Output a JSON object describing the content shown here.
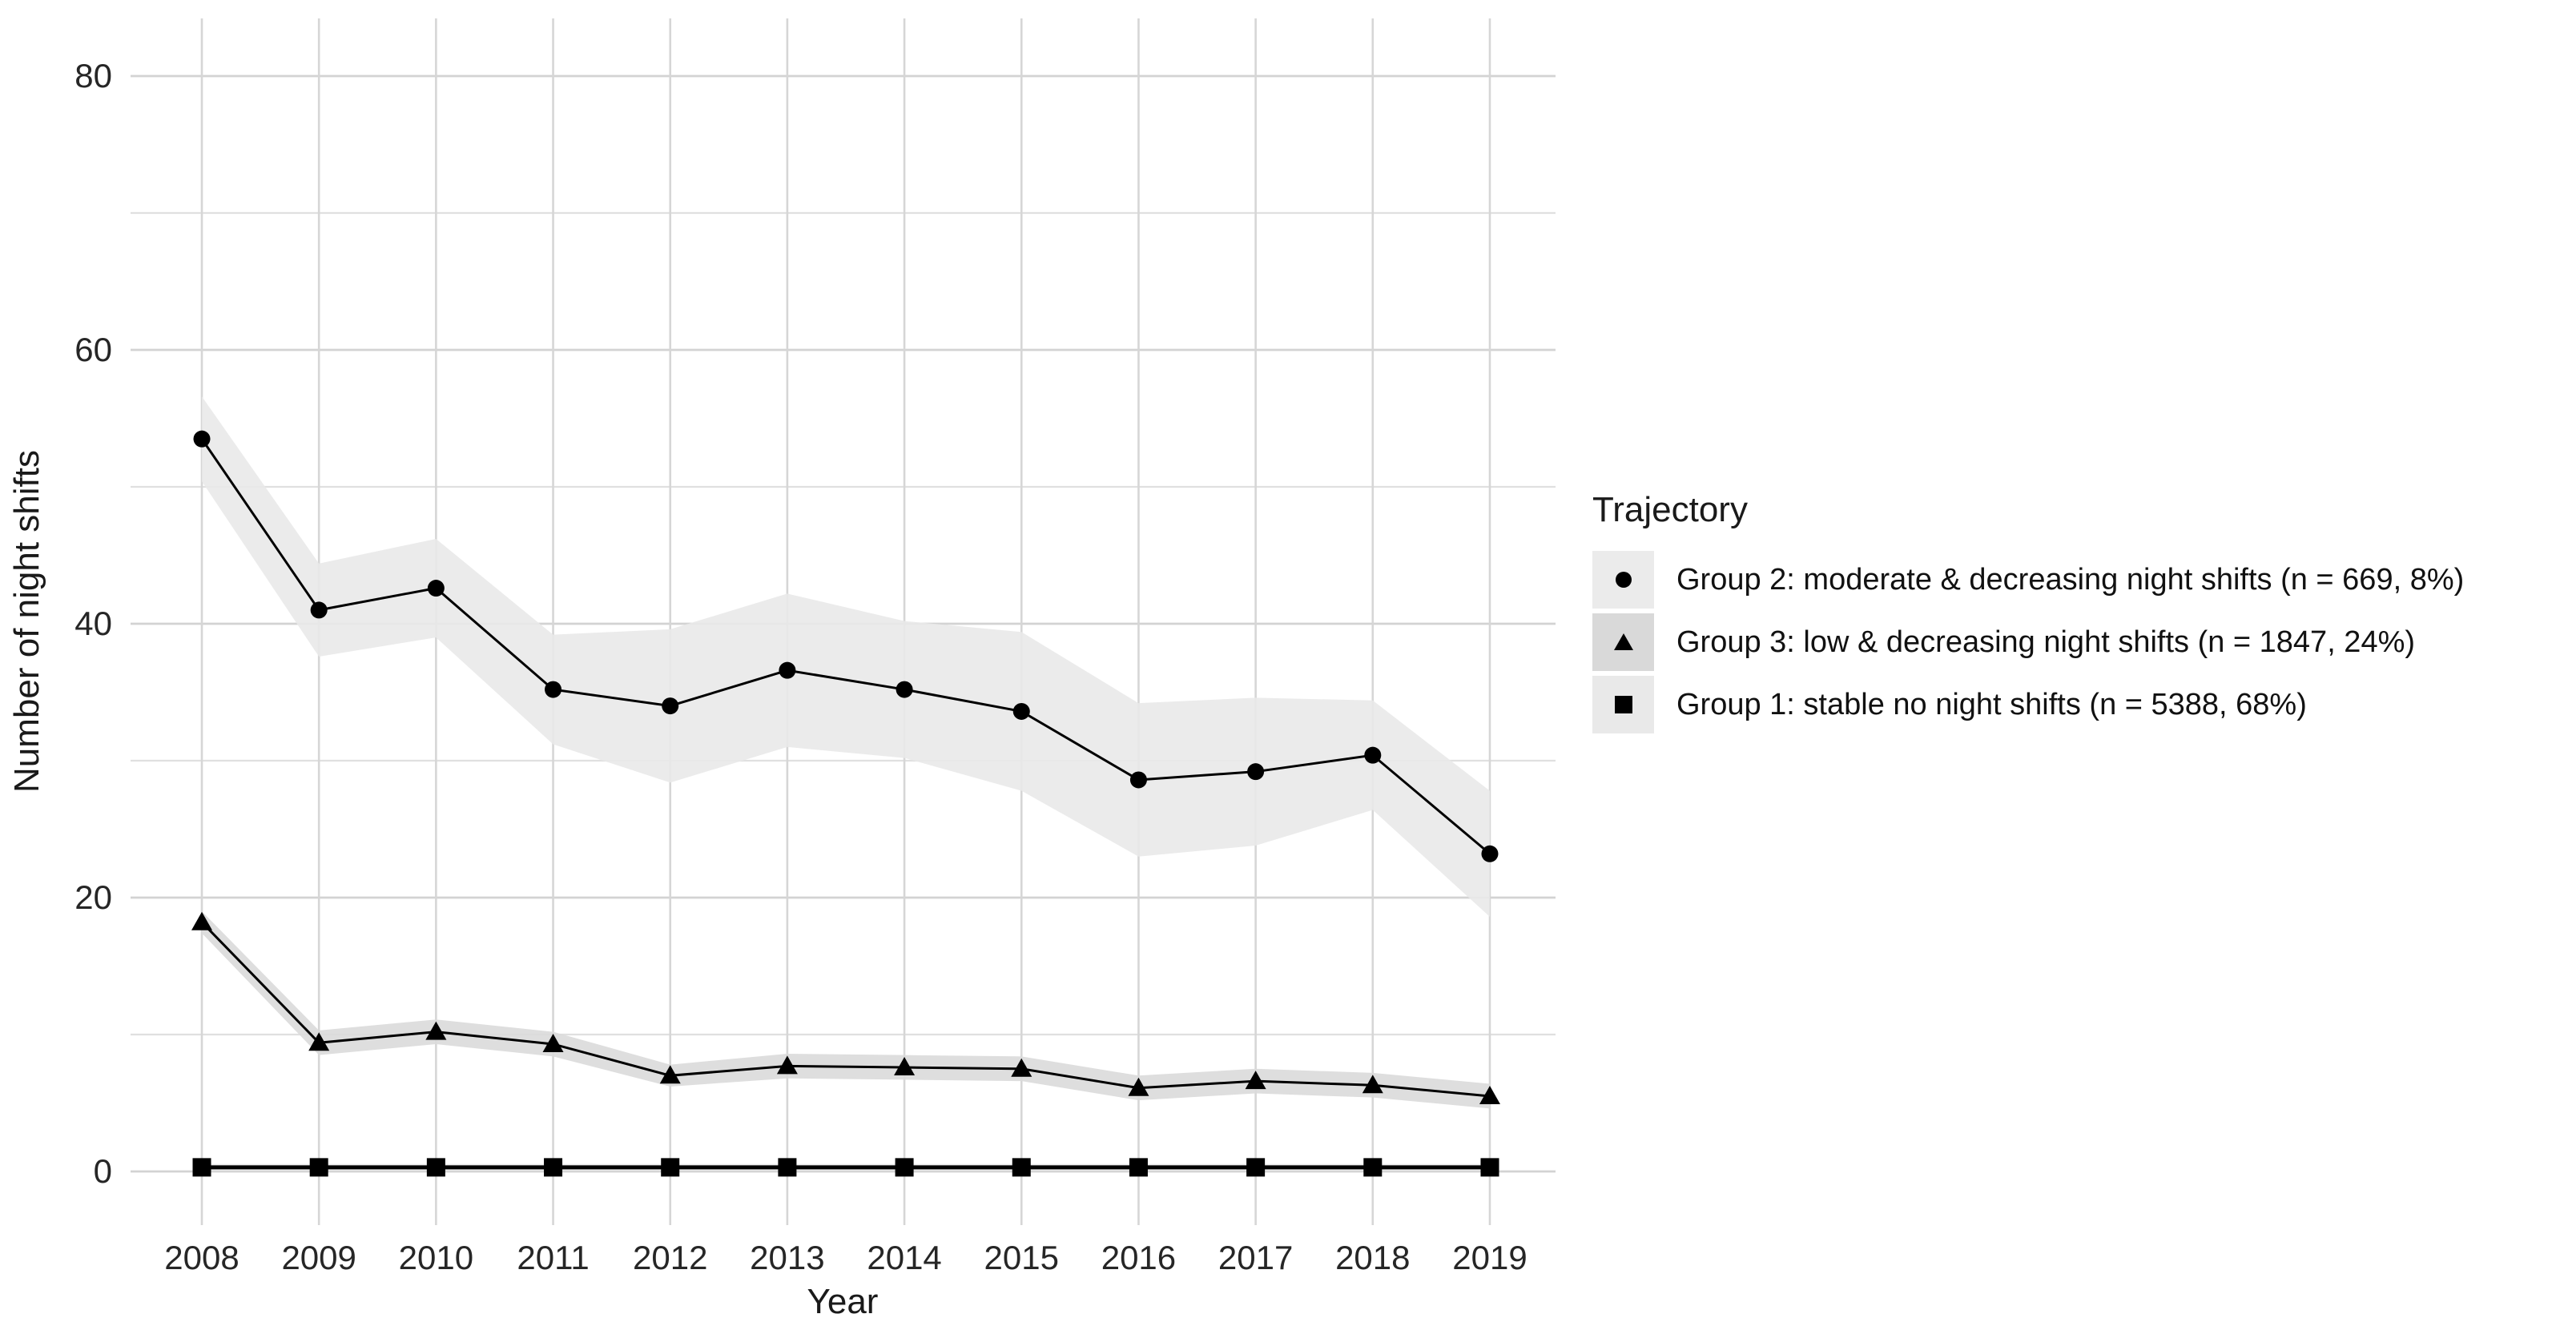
{
  "chart_data": {
    "type": "line",
    "title": "",
    "xlabel": "Year",
    "ylabel": "Number of night shifts",
    "x": [
      2008,
      2009,
      2010,
      2011,
      2012,
      2013,
      2014,
      2015,
      2016,
      2017,
      2018,
      2019
    ],
    "y_ticks": [
      0,
      20,
      40,
      60,
      80
    ],
    "y_minor_ticks": [
      10,
      30,
      50,
      70
    ],
    "ylim": [
      -4,
      84
    ],
    "grid": "horizontal major+minor and vertical per-year light gray gridlines, no panel border",
    "grid_major_color": "#d3d3d3",
    "grid_minor_color": "#e0e0e0",
    "line_color": "#000000",
    "legend_position": "right",
    "legend_title": "Trajectory",
    "series": [
      {
        "name": "Group 2: moderate & decreasing night shifts (n = 669, 8%)",
        "marker": "circle",
        "line_width": 3,
        "ribbon_color": "#e9e9e9",
        "values": [
          53.5,
          41.0,
          42.6,
          35.2,
          34.0,
          36.6,
          35.2,
          33.6,
          28.6,
          29.2,
          30.4,
          23.2
        ],
        "ci_low": [
          50.4,
          37.6,
          39.0,
          31.2,
          28.4,
          31.0,
          30.2,
          27.8,
          23.0,
          23.8,
          26.4,
          18.6
        ],
        "ci_high": [
          56.6,
          44.4,
          46.2,
          39.2,
          39.6,
          42.2,
          40.2,
          39.4,
          34.2,
          34.6,
          34.4,
          27.8
        ]
      },
      {
        "name": "Group 3: low & decreasing night shifts (n = 1847, 24%)",
        "marker": "triangle",
        "line_width": 3,
        "ribbon_color": "#dadada",
        "values": [
          18.2,
          9.4,
          10.2,
          9.3,
          7.0,
          7.7,
          7.6,
          7.5,
          6.1,
          6.6,
          6.3,
          5.5
        ],
        "ci_low": [
          17.4,
          8.5,
          9.3,
          8.4,
          6.2,
          6.8,
          6.7,
          6.6,
          5.2,
          5.7,
          5.4,
          4.6
        ],
        "ci_high": [
          19.0,
          10.3,
          11.1,
          10.2,
          7.8,
          8.6,
          8.5,
          8.4,
          7.0,
          7.5,
          7.2,
          6.4
        ]
      },
      {
        "name": "Group 1: stable no night shifts (n = 5388, 68%)",
        "marker": "square",
        "line_width": 5,
        "ribbon_color": "#e9e9e9",
        "values": [
          0.3,
          0.3,
          0.3,
          0.3,
          0.3,
          0.3,
          0.3,
          0.3,
          0.3,
          0.3,
          0.3,
          0.3
        ],
        "ci_low": [
          0.05,
          0.05,
          0.05,
          0.05,
          0.05,
          0.05,
          0.05,
          0.05,
          0.05,
          0.05,
          0.05,
          0.05
        ],
        "ci_high": [
          0.55,
          0.55,
          0.55,
          0.55,
          0.55,
          0.55,
          0.55,
          0.55,
          0.55,
          0.55,
          0.55,
          0.55
        ]
      }
    ]
  },
  "legend": {
    "title": "Trajectory",
    "items": [
      {
        "label": "Group 2: moderate & decreasing night shifts (n = 669, 8%)",
        "marker": "circle"
      },
      {
        "label": "Group 3: low & decreasing night shifts (n = 1847, 24%)",
        "marker": "triangle"
      },
      {
        "label": "Group 1: stable no night shifts (n = 5388, 68%)",
        "marker": "square"
      }
    ]
  },
  "axes": {
    "x_title": "Year",
    "y_title": "Number of night shifts",
    "x_tick_labels": [
      "2008",
      "2009",
      "2010",
      "2011",
      "2012",
      "2013",
      "2014",
      "2015",
      "2016",
      "2017",
      "2018",
      "2019"
    ],
    "y_tick_labels": [
      "0",
      "20",
      "40",
      "60",
      "80"
    ]
  }
}
